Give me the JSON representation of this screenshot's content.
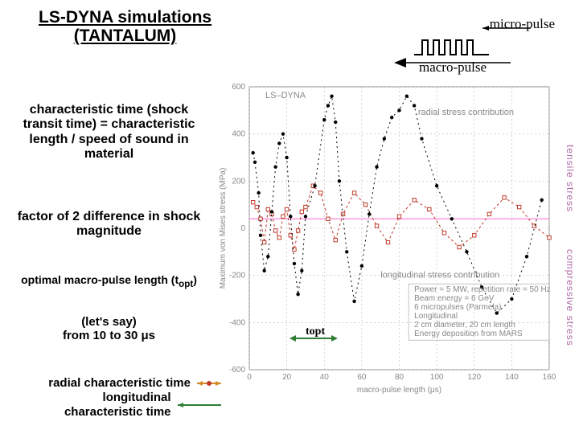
{
  "title": "LS-DYNA simulations\n(TANTALUM)",
  "micro_label": "micro-pulse",
  "macro_label": "macro-pulse",
  "left_text": {
    "t1": "characteristic time (shock transit time) = characteristic length / speed of sound in material",
    "t2": "factor of 2 difference in shock  magnitude",
    "t3_a": "optimal macro-pulse length (t",
    "t3_b": "opt",
    "t3_c": ")",
    "t4": "(let's say)\nfrom 10 to 30 μs"
  },
  "legend": {
    "radial": "radial characteristic time",
    "longitudinal": "longitudinal characteristic time"
  },
  "topt": "topt",
  "right_axis": {
    "top": "tensile stress",
    "bottom": "compressive stress"
  },
  "chart": {
    "title": "LS–DYNA",
    "subtitle1": "radial stress contribution",
    "subtitle2": "longitudinal stress contribution",
    "box_lines": [
      "Power = 5 MW, repetition rate = 50 Hz",
      "Beam energy = 6 GeV",
      "6 micropulses (Parmela)",
      "Longitudinal",
      "2 cm diameter, 20 cm length",
      "Energy deposition from MARS"
    ],
    "xlabel": "macro-pulse length (μs)",
    "ylabel": "Maximum von Mises stress (MPa)",
    "xlim": [
      0,
      160
    ],
    "ylim": [
      -600,
      600
    ],
    "yticks": [
      -600,
      -400,
      -200,
      0,
      200,
      400,
      600
    ],
    "xticks": [
      0,
      20,
      40,
      60,
      80,
      100,
      120,
      140,
      160
    ],
    "grid_color": "#b8b8b8",
    "series_black": {
      "color": "#000000",
      "marker": "dot",
      "pts": [
        [
          2,
          320
        ],
        [
          3,
          280
        ],
        [
          5,
          150
        ],
        [
          6,
          -30
        ],
        [
          8,
          -180
        ],
        [
          10,
          -120
        ],
        [
          12,
          70
        ],
        [
          14,
          260
        ],
        [
          16,
          360
        ],
        [
          18,
          400
        ],
        [
          20,
          300
        ],
        [
          22,
          50
        ],
        [
          24,
          -150
        ],
        [
          26,
          -280
        ],
        [
          28,
          -180
        ],
        [
          30,
          50
        ],
        [
          35,
          180
        ],
        [
          40,
          460
        ],
        [
          42,
          520
        ],
        [
          44,
          560
        ],
        [
          46,
          450
        ],
        [
          48,
          200
        ],
        [
          52,
          -100
        ],
        [
          56,
          -310
        ],
        [
          60,
          -160
        ],
        [
          64,
          60
        ],
        [
          68,
          260
        ],
        [
          72,
          380
        ],
        [
          76,
          470
        ],
        [
          80,
          500
        ],
        [
          84,
          560
        ],
        [
          88,
          520
        ],
        [
          92,
          380
        ],
        [
          100,
          180
        ],
        [
          108,
          40
        ],
        [
          116,
          -100
        ],
        [
          124,
          -250
        ],
        [
          132,
          -360
        ],
        [
          140,
          -300
        ],
        [
          148,
          -120
        ],
        [
          156,
          120
        ]
      ]
    },
    "series_red": {
      "color": "#c03a2a",
      "marker": "open-square",
      "pts": [
        [
          2,
          110
        ],
        [
          4,
          90
        ],
        [
          6,
          40
        ],
        [
          8,
          -60
        ],
        [
          10,
          80
        ],
        [
          12,
          60
        ],
        [
          14,
          -10
        ],
        [
          16,
          -40
        ],
        [
          18,
          50
        ],
        [
          20,
          80
        ],
        [
          22,
          -30
        ],
        [
          24,
          -90
        ],
        [
          26,
          -10
        ],
        [
          28,
          70
        ],
        [
          30,
          90
        ],
        [
          34,
          180
        ],
        [
          38,
          150
        ],
        [
          42,
          40
        ],
        [
          46,
          -50
        ],
        [
          50,
          60
        ],
        [
          56,
          150
        ],
        [
          62,
          100
        ],
        [
          68,
          10
        ],
        [
          74,
          -60
        ],
        [
          80,
          50
        ],
        [
          88,
          120
        ],
        [
          96,
          80
        ],
        [
          104,
          -20
        ],
        [
          112,
          -80
        ],
        [
          120,
          -30
        ],
        [
          128,
          60
        ],
        [
          136,
          130
        ],
        [
          144,
          90
        ],
        [
          152,
          10
        ],
        [
          160,
          -40
        ]
      ]
    },
    "pink_line_y": 40
  },
  "colors": {
    "green": "#2e7d32",
    "orange": "#d38b2a",
    "red": "#c03a2a",
    "purple": "#b06aa8",
    "pink": "#ff66cc"
  }
}
